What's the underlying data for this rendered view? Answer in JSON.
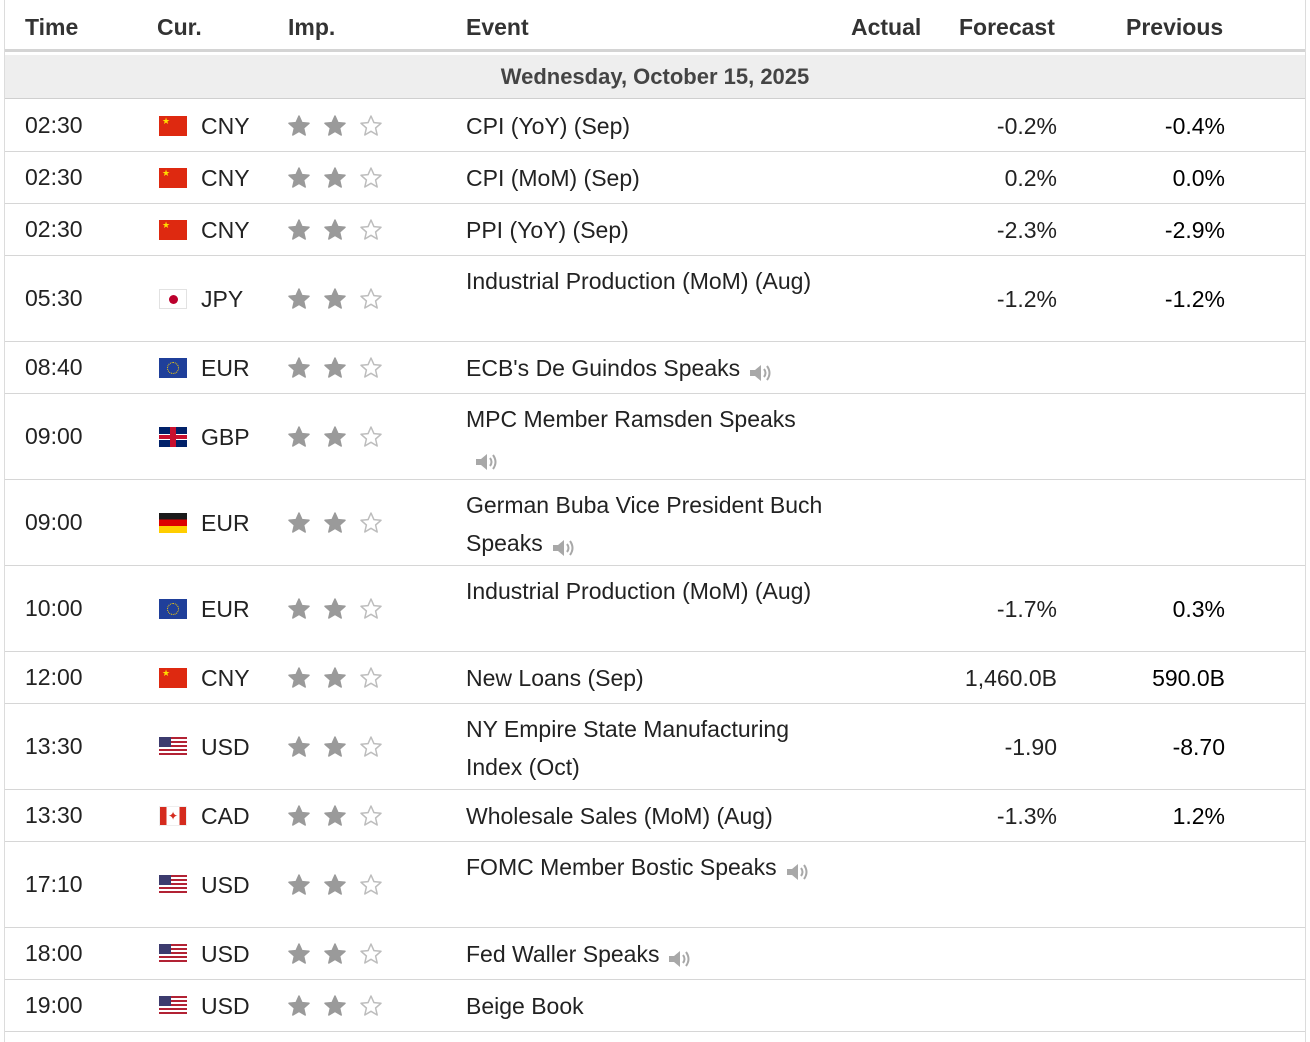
{
  "header": {
    "time": "Time",
    "currency": "Cur.",
    "importance": "Imp.",
    "event": "Event",
    "actual": "Actual",
    "forecast": "Forecast",
    "previous": "Previous"
  },
  "date_label": "Wednesday, October 15, 2025",
  "colors": {
    "star_filled": "#9a9a9a",
    "star_empty": "#bdbdbd",
    "speaker": "#a8a8a8"
  },
  "rows": [
    {
      "time": "02:30",
      "cur": "CNY",
      "flag": "cn",
      "stars": 2,
      "event": "CPI (YoY) (Sep)",
      "speaker": false,
      "actual": "",
      "forecast": "-0.2%",
      "previous": "-0.4%"
    },
    {
      "time": "02:30",
      "cur": "CNY",
      "flag": "cn",
      "stars": 2,
      "event": "CPI (MoM) (Sep)",
      "speaker": false,
      "actual": "",
      "forecast": "0.2%",
      "previous": "0.0%"
    },
    {
      "time": "02:30",
      "cur": "CNY",
      "flag": "cn",
      "stars": 2,
      "event": "PPI (YoY) (Sep)",
      "speaker": false,
      "actual": "",
      "forecast": "-2.3%",
      "previous": "-2.9%"
    },
    {
      "time": "05:30",
      "cur": "JPY",
      "flag": "jp",
      "stars": 2,
      "event": "Industrial Production (MoM) (Aug)",
      "speaker": false,
      "actual": "",
      "forecast": "-1.2%",
      "previous": "-1.2%"
    },
    {
      "time": "08:40",
      "cur": "EUR",
      "flag": "eu",
      "stars": 2,
      "event": "ECB's De Guindos Speaks",
      "speaker": true,
      "actual": "",
      "forecast": "",
      "previous": ""
    },
    {
      "time": "09:00",
      "cur": "GBP",
      "flag": "gb",
      "stars": 2,
      "event": "MPC Member Ramsden Speaks",
      "speaker": true,
      "actual": "",
      "forecast": "",
      "previous": ""
    },
    {
      "time": "09:00",
      "cur": "EUR",
      "flag": "de",
      "stars": 2,
      "event": "German Buba Vice President Buch Speaks",
      "speaker": true,
      "actual": "",
      "forecast": "",
      "previous": ""
    },
    {
      "time": "10:00",
      "cur": "EUR",
      "flag": "eu",
      "stars": 2,
      "event": "Industrial Production (MoM) (Aug)",
      "speaker": false,
      "actual": "",
      "forecast": "-1.7%",
      "previous": "0.3%"
    },
    {
      "time": "12:00",
      "cur": "CNY",
      "flag": "cn",
      "stars": 2,
      "event": "New Loans (Sep)",
      "speaker": false,
      "actual": "",
      "forecast": "1,460.0B",
      "previous": "590.0B"
    },
    {
      "time": "13:30",
      "cur": "USD",
      "flag": "us",
      "stars": 2,
      "event": "NY Empire State Manufacturing Index (Oct)",
      "speaker": false,
      "actual": "",
      "forecast": "-1.90",
      "previous": "-8.70"
    },
    {
      "time": "13:30",
      "cur": "CAD",
      "flag": "ca",
      "stars": 2,
      "event": "Wholesale Sales (MoM) (Aug)",
      "speaker": false,
      "actual": "",
      "forecast": "-1.3%",
      "previous": "1.2%"
    },
    {
      "time": "17:10",
      "cur": "USD",
      "flag": "us",
      "stars": 2,
      "event": "FOMC Member Bostic Speaks",
      "speaker": true,
      "actual": "",
      "forecast": "",
      "previous": ""
    },
    {
      "time": "18:00",
      "cur": "USD",
      "flag": "us",
      "stars": 2,
      "event": "Fed Waller Speaks",
      "speaker": true,
      "actual": "",
      "forecast": "",
      "previous": ""
    },
    {
      "time": "19:00",
      "cur": "USD",
      "flag": "us",
      "stars": 2,
      "event": "Beige Book",
      "speaker": false,
      "actual": "",
      "forecast": "",
      "previous": ""
    }
  ]
}
